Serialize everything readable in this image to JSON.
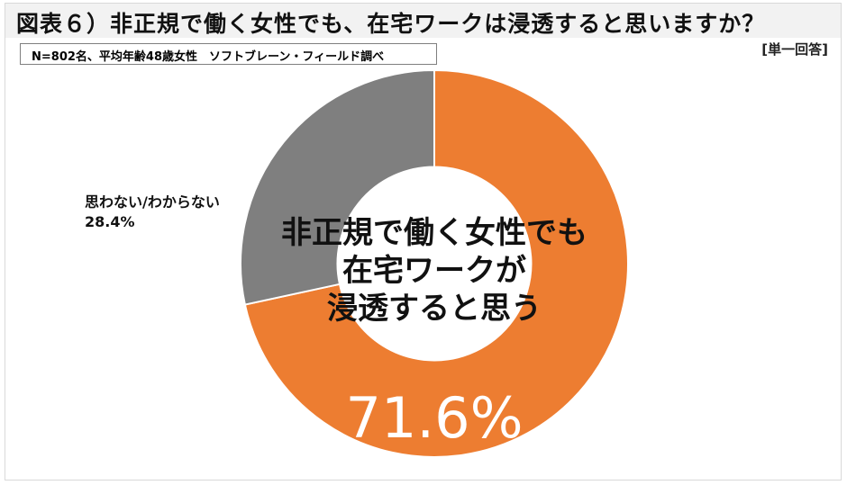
{
  "header": {
    "title": "図表６）非正規で働く女性でも、在宅ワークは浸透すると思いますか？",
    "subtitle": "N=802名、平均年齢48歳女性　ソフトブレーン・フィールド調べ",
    "answer_type": "[単一回答]"
  },
  "labels": {
    "center_line1": "非正規で働く女性でも",
    "center_line2": "在宅ワークが",
    "center_line3": "浸透すると思う",
    "main_value": "71.6%",
    "other_label": "思わない/わからない",
    "other_value": "28.4%"
  },
  "colors": {
    "agree": "#ED7D31",
    "other": "#7F7F7F",
    "title_band": "#F2F2F2"
  },
  "chart_data": {
    "type": "pie",
    "variant": "donut",
    "title": "図表６）非正規で働く女性でも、在宅ワークは浸透すると思いますか？",
    "subtitle": "N=802名、平均年齢48歳女性　ソフトブレーン・フィールド調べ",
    "note": "[単一回答]",
    "categories": [
      "非正規で働く女性でも在宅ワークが浸透すると思う",
      "思わない/わからない"
    ],
    "values": [
      71.6,
      28.4
    ],
    "unit": "%",
    "colors": [
      "#ED7D31",
      "#7F7F7F"
    ],
    "start_angle": "12 o'clock, clockwise",
    "hole_ratio": 0.5,
    "legend": "none (direct labels)"
  }
}
